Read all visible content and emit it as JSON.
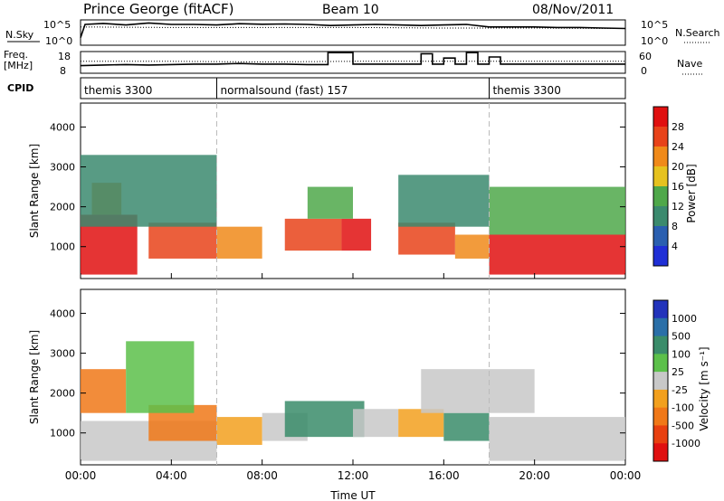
{
  "header": {
    "station": "Prince George (fitACF)",
    "beam": "Beam 10",
    "date": "08/Nov/2011"
  },
  "chart_data": [
    {
      "type": "line",
      "panel": "noise",
      "left_label": "N.Sky",
      "right_label": "N.Search",
      "left_ticks": [
        "10^5",
        "10^0"
      ],
      "right_ticks": [
        "10^5",
        "10^0"
      ],
      "x_range": [
        0,
        24
      ],
      "series": [
        {
          "name": "N.Sky",
          "style": "solid",
          "points": [
            [
              0,
              0.3
            ],
            [
              0.2,
              0.82
            ],
            [
              1,
              0.86
            ],
            [
              2,
              0.8
            ],
            [
              3,
              0.88
            ],
            [
              4,
              0.82
            ],
            [
              5,
              0.82
            ],
            [
              6,
              0.8
            ],
            [
              7,
              0.85
            ],
            [
              8,
              0.83
            ],
            [
              9,
              0.84
            ],
            [
              10,
              0.82
            ],
            [
              11,
              0.78
            ],
            [
              12,
              0.8
            ],
            [
              13,
              0.82
            ],
            [
              14,
              0.8
            ],
            [
              15,
              0.78
            ],
            [
              16,
              0.8
            ],
            [
              17,
              0.82
            ],
            [
              18,
              0.72
            ],
            [
              19,
              0.72
            ],
            [
              20,
              0.72
            ],
            [
              21,
              0.7
            ],
            [
              22,
              0.7
            ],
            [
              23,
              0.68
            ],
            [
              24,
              0.66
            ]
          ]
        },
        {
          "name": "N.Search",
          "style": "dotted",
          "points": [
            [
              0,
              0.72
            ],
            [
              4,
              0.7
            ],
            [
              8,
              0.7
            ],
            [
              12,
              0.7
            ],
            [
              16,
              0.68
            ],
            [
              20,
              0.68
            ],
            [
              24,
              0.66
            ]
          ]
        }
      ]
    },
    {
      "type": "line",
      "panel": "frequency",
      "left_label": "Freq.",
      "left_unit": "[MHz]",
      "right_label": "Nave",
      "left_ticks": [
        "18",
        "8"
      ],
      "right_ticks": [
        "60",
        "0"
      ],
      "x_range": [
        0,
        24
      ],
      "series": [
        {
          "name": "Freq.",
          "style": "solid",
          "points": [
            [
              0,
              0.35
            ],
            [
              1,
              0.38
            ],
            [
              2,
              0.4
            ],
            [
              3,
              0.38
            ],
            [
              4,
              0.4
            ],
            [
              5,
              0.42
            ],
            [
              6,
              0.42
            ],
            [
              7,
              0.45
            ],
            [
              8,
              0.42
            ],
            [
              9,
              0.42
            ],
            [
              10,
              0.4
            ],
            [
              10.9,
              0.4
            ],
            [
              10.9,
              0.95
            ],
            [
              12,
              0.95
            ],
            [
              12,
              0.42
            ],
            [
              13,
              0.42
            ],
            [
              14,
              0.42
            ],
            [
              15,
              0.42
            ],
            [
              15,
              0.9
            ],
            [
              15.5,
              0.9
            ],
            [
              15.5,
              0.42
            ],
            [
              16,
              0.42
            ],
            [
              16,
              0.7
            ],
            [
              16.5,
              0.7
            ],
            [
              16.5,
              0.42
            ],
            [
              17,
              0.42
            ],
            [
              17,
              0.95
            ],
            [
              17.5,
              0.95
            ],
            [
              17.5,
              0.42
            ],
            [
              18,
              0.42
            ],
            [
              18,
              0.75
            ],
            [
              18.5,
              0.75
            ],
            [
              18.5,
              0.42
            ],
            [
              20,
              0.42
            ],
            [
              24,
              0.42
            ]
          ]
        },
        {
          "name": "Nave",
          "style": "dotted",
          "points": [
            [
              0,
              0.55
            ],
            [
              4,
              0.55
            ],
            [
              8,
              0.52
            ],
            [
              12,
              0.55
            ],
            [
              16,
              0.55
            ],
            [
              20,
              0.55
            ],
            [
              24,
              0.55
            ]
          ]
        }
      ]
    },
    {
      "type": "table",
      "panel": "cpid",
      "label": "CPID",
      "segments": [
        {
          "start": 0,
          "end": 6,
          "text": "themis 3300"
        },
        {
          "start": 6,
          "end": 18,
          "text": "normalsound (fast) 157"
        },
        {
          "start": 18,
          "end": 24,
          "text": "themis 3300"
        }
      ]
    },
    {
      "type": "heatmap",
      "panel": "power",
      "ylabel": "Slant Range [km]",
      "x_range": [
        0,
        24
      ],
      "ylim": [
        200,
        4600
      ],
      "y_ticks": [
        1000,
        2000,
        3000,
        4000
      ],
      "colorbar": {
        "label": "Power [dB]",
        "ticks": [
          "4",
          "8",
          "12",
          "16",
          "20",
          "24",
          "28"
        ],
        "colors": [
          "#1f2fd6",
          "#2a5fb0",
          "#3b8a6e",
          "#4fa84a",
          "#e6c21f",
          "#f08a1a",
          "#e8431a",
          "#e01010"
        ]
      },
      "regions": [
        {
          "t0": 0,
          "t1": 2.5,
          "r0": 300,
          "r1": 1800,
          "level": 7
        },
        {
          "t0": 0.5,
          "t1": 1.8,
          "r0": 1800,
          "r1": 2600,
          "level": 5
        },
        {
          "t0": 3,
          "t1": 6,
          "r0": 700,
          "r1": 1600,
          "level": 6
        },
        {
          "t0": 6,
          "t1": 8,
          "r0": 700,
          "r1": 1500,
          "level": 5
        },
        {
          "t0": 9,
          "t1": 11.5,
          "r0": 900,
          "r1": 1700,
          "level": 6
        },
        {
          "t0": 11.5,
          "t1": 12.8,
          "r0": 900,
          "r1": 1700,
          "level": 7
        },
        {
          "t0": 14,
          "t1": 16.5,
          "r0": 800,
          "r1": 1600,
          "level": 6
        },
        {
          "t0": 16.5,
          "t1": 18,
          "r0": 700,
          "r1": 1300,
          "level": 5
        },
        {
          "t0": 18,
          "t1": 24,
          "r0": 300,
          "r1": 1300,
          "level": 7
        },
        {
          "t0": 10,
          "t1": 12,
          "r0": 1700,
          "r1": 2500,
          "level": 3
        },
        {
          "t0": 0,
          "t1": 6,
          "r0": 1500,
          "r1": 3300,
          "level": 2
        },
        {
          "t0": 14,
          "t1": 18,
          "r0": 1500,
          "r1": 2800,
          "level": 2
        },
        {
          "t0": 18,
          "t1": 24,
          "r0": 1300,
          "r1": 2500,
          "level": 3
        }
      ]
    },
    {
      "type": "heatmap",
      "panel": "velocity",
      "ylabel": "Slant Range [km]",
      "xlabel": "Time UT",
      "x_range": [
        0,
        24
      ],
      "x_ticks": [
        "00:00",
        "04:00",
        "08:00",
        "12:00",
        "16:00",
        "20:00",
        "00:00"
      ],
      "ylim": [
        200,
        4600
      ],
      "y_ticks": [
        1000,
        2000,
        3000,
        4000
      ],
      "colorbar": {
        "label": "Velocity [m s⁻¹]",
        "ticks": [
          "1000",
          "500",
          "100",
          "25",
          "-25",
          "-100",
          "-500",
          "-1000"
        ],
        "colors": [
          "#2233bb",
          "#2a6fa8",
          "#3a8c6a",
          "#5cc04a",
          "#c8c8c8",
          "#f2a01e",
          "#f07818",
          "#e84010",
          "#e01010"
        ]
      },
      "regions": [
        {
          "t0": 0,
          "t1": 6,
          "r0": 300,
          "r1": 1300,
          "level": 4
        },
        {
          "t0": 3,
          "t1": 6,
          "r0": 800,
          "r1": 1700,
          "level": 6
        },
        {
          "t0": 6,
          "t1": 8,
          "r0": 700,
          "r1": 1400,
          "level": 5
        },
        {
          "t0": 8,
          "t1": 10,
          "r0": 800,
          "r1": 1500,
          "level": 4
        },
        {
          "t0": 9,
          "t1": 12.5,
          "r0": 900,
          "r1": 1800,
          "level": 2
        },
        {
          "t0": 12,
          "t1": 14,
          "r0": 900,
          "r1": 1600,
          "level": 4
        },
        {
          "t0": 14,
          "t1": 16,
          "r0": 900,
          "r1": 1600,
          "level": 5
        },
        {
          "t0": 16,
          "t1": 18,
          "r0": 800,
          "r1": 1500,
          "level": 2
        },
        {
          "t0": 18,
          "t1": 24,
          "r0": 300,
          "r1": 1400,
          "level": 4
        },
        {
          "t0": 0,
          "t1": 2,
          "r0": 1500,
          "r1": 2600,
          "level": 6
        },
        {
          "t0": 15,
          "t1": 20,
          "r0": 1500,
          "r1": 2600,
          "level": 4
        },
        {
          "t0": 2,
          "t1": 5,
          "r0": 1500,
          "r1": 3300,
          "level": 3
        }
      ]
    }
  ]
}
